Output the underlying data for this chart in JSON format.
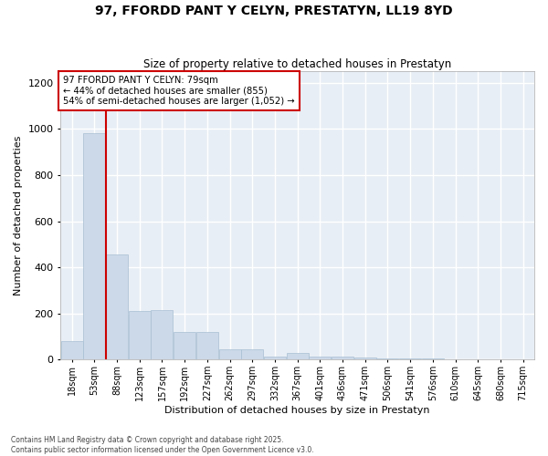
{
  "title": "97, FFORDD PANT Y CELYN, PRESTATYN, LL19 8YD",
  "subtitle": "Size of property relative to detached houses in Prestatyn",
  "xlabel": "Distribution of detached houses by size in Prestatyn",
  "ylabel": "Number of detached properties",
  "bar_color": "#ccd9e8",
  "bar_edge_color": "#a8bfd4",
  "background_color": "#e8eef5",
  "grid_color": "#ffffff",
  "annotation_text": "97 FFORDD PANT Y CELYN: 79sqm\n← 44% of detached houses are smaller (855)\n54% of semi-detached houses are larger (1,052) →",
  "vline_bar_index": 1,
  "annotation_box_color": "#cc0000",
  "footer_text": "Contains HM Land Registry data © Crown copyright and database right 2025.\nContains public sector information licensed under the Open Government Licence v3.0.",
  "categories": [
    "18sqm",
    "53sqm",
    "88sqm",
    "123sqm",
    "157sqm",
    "192sqm",
    "227sqm",
    "262sqm",
    "297sqm",
    "332sqm",
    "367sqm",
    "401sqm",
    "436sqm",
    "471sqm",
    "506sqm",
    "541sqm",
    "576sqm",
    "610sqm",
    "645sqm",
    "680sqm",
    "715sqm"
  ],
  "values": [
    80,
    980,
    455,
    210,
    215,
    120,
    120,
    45,
    45,
    15,
    30,
    15,
    15,
    10,
    5,
    5,
    5,
    3,
    3,
    2,
    2
  ],
  "ylim": [
    0,
    1250
  ],
  "yticks": [
    0,
    200,
    400,
    600,
    800,
    1000,
    1200
  ],
  "fig_facecolor": "#ffffff",
  "footer_color": "#444444"
}
